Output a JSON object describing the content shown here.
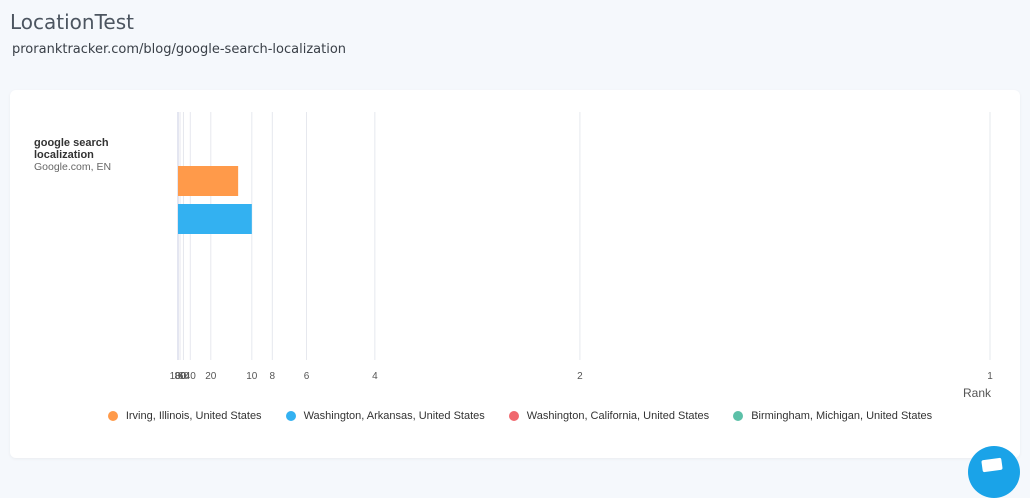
{
  "header": {
    "title": "LocationTest",
    "url": "proranktracker.com/blog/google-search-localization"
  },
  "chart_data": {
    "type": "bar",
    "orientation": "horizontal",
    "x_scale": "reciprocal",
    "xlabel": "Rank",
    "xlim": [
      100,
      1
    ],
    "x_ticks": [
      100,
      80,
      60,
      40,
      20,
      10,
      8,
      6,
      4,
      2,
      1
    ],
    "grid": true,
    "legend_position": "bottom",
    "categories": [
      {
        "keyword": "google search localization",
        "engine": "Google.com, EN"
      }
    ],
    "series": [
      {
        "name": "Irving, Illinois, United States",
        "color": "#ff9a4a",
        "values": [
          12
        ]
      },
      {
        "name": "Washington, Arkansas, United States",
        "color": "#33b1f1",
        "values": [
          10
        ]
      },
      {
        "name": "Washington, California, United States",
        "color": "#f0686e",
        "values": [
          null
        ]
      },
      {
        "name": "Birmingham, Michigan, United States",
        "color": "#5cc0a8",
        "values": [
          null
        ]
      }
    ]
  }
}
